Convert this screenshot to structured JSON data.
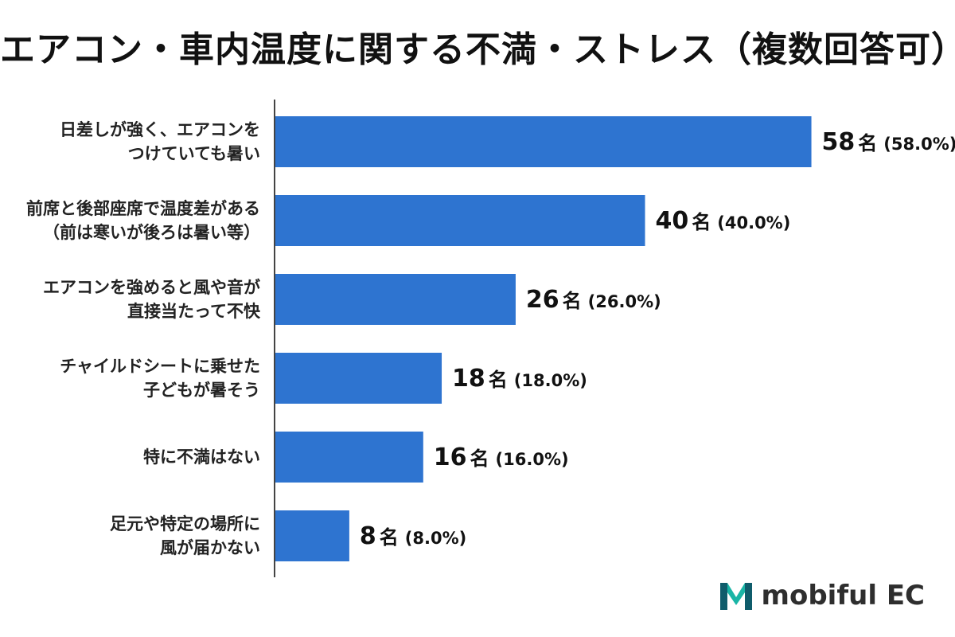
{
  "title": "エアコン・車内温度に関する不満・ストレス（複数回答可）",
  "logo": {
    "text": "mobiful EC",
    "icon": "mobiful-m-logo-icon",
    "colors": {
      "dark": "#0f5c6b",
      "light": "#1ab5a6"
    }
  },
  "colors": {
    "bar": "#2e74d0",
    "axis": "#444444"
  },
  "chart_data": {
    "type": "bar",
    "orientation": "horizontal",
    "title": "エアコン・車内温度に関する不満・ストレス（複数回答可）",
    "unit": "名",
    "xlim": [
      0,
      62
    ],
    "grid": false,
    "categories": [
      [
        "日差しが強く、エアコンを",
        "つけていても暑い"
      ],
      [
        "前席と後部座席で温度差がある",
        "（前は寒いが後ろは暑い等）"
      ],
      [
        "エアコンを強めると風や音が",
        "直接当たって不快"
      ],
      [
        "チャイルドシートに乗せた",
        "子どもが暑そう"
      ],
      [
        "特に不満はない"
      ],
      [
        "足元や特定の場所に",
        "風が届かない"
      ]
    ],
    "values": [
      58,
      40,
      26,
      18,
      16,
      8
    ],
    "percents": [
      "(58.0%)",
      "(40.0%)",
      "(26.0%)",
      "(18.0%)",
      "(16.0%)",
      "(8.0%)"
    ]
  }
}
